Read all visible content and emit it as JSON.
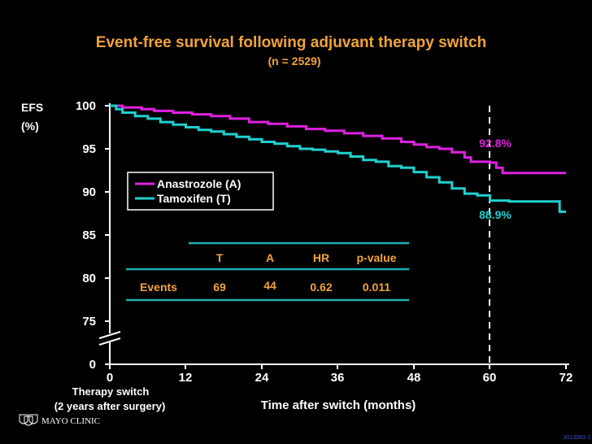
{
  "chart_data": {
    "type": "line",
    "title": "Event-free survival following adjuvant therapy switch",
    "subtitle": "(n = 2529)",
    "ylabel_line1": "EFS",
    "ylabel_line2": "(%)",
    "xlabel": "Time after switch (months)",
    "x_origin_note_line1": "Therapy switch",
    "x_origin_note_line2": "(2 years after surgery)",
    "y_ticks": [
      "100",
      "95",
      "90",
      "85",
      "80",
      "75",
      "0"
    ],
    "x_ticks": [
      "0",
      "12",
      "24",
      "36",
      "48",
      "60",
      "72"
    ],
    "xlim": [
      0,
      72
    ],
    "ylim": [
      70,
      100
    ],
    "y_axis_break": true,
    "reference_line_x": 60,
    "series": [
      {
        "name": "Anastrozole (A)",
        "color": "#e020e0",
        "points": [
          [
            0,
            100
          ],
          [
            2,
            99.8
          ],
          [
            5,
            99.6
          ],
          [
            7,
            99.4
          ],
          [
            10,
            99.2
          ],
          [
            13,
            99.0
          ],
          [
            16,
            98.8
          ],
          [
            19,
            98.5
          ],
          [
            22,
            98.1
          ],
          [
            25,
            97.9
          ],
          [
            28,
            97.6
          ],
          [
            31,
            97.3
          ],
          [
            34,
            97.1
          ],
          [
            37,
            96.8
          ],
          [
            40,
            96.5
          ],
          [
            43,
            96.2
          ],
          [
            46,
            95.8
          ],
          [
            48,
            95.5
          ],
          [
            50,
            95.2
          ],
          [
            52,
            95.0
          ],
          [
            54,
            94.6
          ],
          [
            56,
            94.0
          ],
          [
            57,
            93.5
          ],
          [
            60,
            93.4
          ],
          [
            61,
            92.8
          ],
          [
            62,
            92.2
          ],
          [
            72,
            92.2
          ]
        ],
        "end_label": "92.8%"
      },
      {
        "name": "Tamoxifen (T)",
        "color": "#20d0d0",
        "points": [
          [
            0,
            100
          ],
          [
            1,
            99.6
          ],
          [
            2,
            99.2
          ],
          [
            4,
            98.8
          ],
          [
            6,
            98.5
          ],
          [
            8,
            98.1
          ],
          [
            10,
            97.8
          ],
          [
            12,
            97.5
          ],
          [
            14,
            97.2
          ],
          [
            16,
            97.0
          ],
          [
            18,
            96.7
          ],
          [
            20,
            96.4
          ],
          [
            22,
            96.1
          ],
          [
            24,
            95.8
          ],
          [
            26,
            95.6
          ],
          [
            28,
            95.3
          ],
          [
            30,
            95.0
          ],
          [
            32,
            94.9
          ],
          [
            34,
            94.7
          ],
          [
            36,
            94.5
          ],
          [
            38,
            94.1
          ],
          [
            40,
            93.7
          ],
          [
            42,
            93.5
          ],
          [
            44,
            93.0
          ],
          [
            46,
            92.8
          ],
          [
            48,
            92.3
          ],
          [
            50,
            91.7
          ],
          [
            52,
            91.1
          ],
          [
            54,
            90.4
          ],
          [
            56,
            89.8
          ],
          [
            58,
            89.6
          ],
          [
            60,
            89.0
          ],
          [
            63,
            88.9
          ],
          [
            70,
            88.9
          ],
          [
            71,
            87.7
          ],
          [
            72,
            87.7
          ]
        ],
        "end_label": "88.9%"
      }
    ],
    "legend": [
      "Anastrozole (A)",
      "Tamoxifen (T)"
    ],
    "table": {
      "headers": [
        "T",
        "A",
        "HR",
        "p-value"
      ],
      "row_label": "Events",
      "values": [
        "69",
        "44",
        "0.62",
        "0.011"
      ]
    }
  },
  "footer": {
    "logo_text": "MAYO CLINIC",
    "code": "3013063-1"
  },
  "colors": {
    "title": "#f2a33a",
    "anastrozole": "#e020e0",
    "tamoxifen": "#20d0d0",
    "table_lines": "#20b0b0"
  }
}
